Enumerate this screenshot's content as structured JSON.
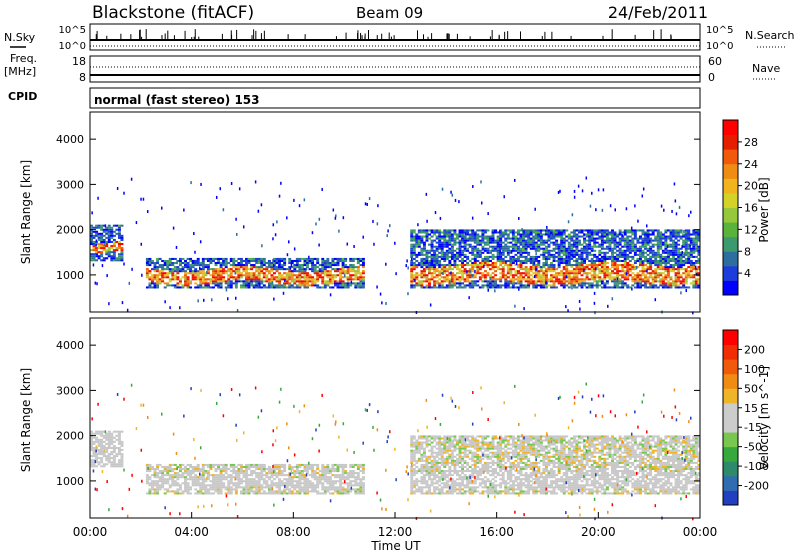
{
  "header": {
    "station": "Blackstone (fitACF)",
    "beam": "Beam 09",
    "date": "24/Feb/2011"
  },
  "top_panels": {
    "nsky_label": "N.Sky",
    "nsky_ticks": [
      "10^5",
      "10^0"
    ],
    "nsky_right_ticks": [
      "10^5",
      "10^0"
    ],
    "nsearch_label": "N.Search",
    "freq_label": "Freq.",
    "freq_unit": "[MHz]",
    "freq_ticks": [
      "18",
      "8"
    ],
    "nave_label": "Nave",
    "nave_ticks": [
      "60",
      "0"
    ],
    "cpid_label": "CPID",
    "cpid_text": "normal (fast stereo) 153"
  },
  "chart_data": [
    {
      "type": "heatmap",
      "panel": "power",
      "ylabel": "Slant Range [km]",
      "ylim": [
        180,
        4600
      ],
      "yticks": [
        1000,
        2000,
        3000,
        4000
      ],
      "xlim": [
        0,
        24
      ],
      "colorbar": {
        "label": "Power [dB]",
        "ticks": [
          "28",
          "24",
          "20",
          "16",
          "12",
          "8",
          "4"
        ],
        "colors": [
          "#0000ff",
          "#1c3cdc",
          "#2e6e9e",
          "#3c9a6e",
          "#5ab43c",
          "#96c83c",
          "#d2d228",
          "#f0b41e",
          "#f08c14",
          "#f05a0a",
          "#e61e00",
          "#ff0000"
        ]
      },
      "echo_bands": [
        {
          "t0": 0.0,
          "t1": 1.3,
          "r_low": 1300,
          "r_high": 2100,
          "core_low": 1450,
          "core_high": 1650
        },
        {
          "t0": 2.2,
          "t1": 10.8,
          "r_low": 700,
          "r_high": 1350,
          "core_low": 800,
          "core_high": 1100
        },
        {
          "t0": 12.6,
          "t1": 24.0,
          "r_low": 700,
          "r_high": 2000,
          "core_low": 800,
          "core_high": 1200
        }
      ]
    },
    {
      "type": "heatmap",
      "panel": "velocity",
      "ylabel": "Slant Range [km]",
      "xlabel": "Time UT",
      "ylim": [
        180,
        4600
      ],
      "yticks": [
        1000,
        2000,
        3000,
        4000
      ],
      "xlim": [
        0,
        24
      ],
      "xticks": [
        "00:00",
        "04:00",
        "08:00",
        "12:00",
        "16:00",
        "20:00",
        "00:00"
      ],
      "colorbar": {
        "label": "Velocity [m s^-1]",
        "ticks": [
          "200",
          "100",
          "50",
          "15",
          "-15",
          "-50",
          "-100",
          "-200"
        ],
        "colors": [
          "#2040c0",
          "#2f6cb0",
          "#2e8a6a",
          "#36a83c",
          "#78c850",
          "#cccccc",
          "#cccccc",
          "#f0b428",
          "#f08c14",
          "#f05a0a",
          "#f02d05",
          "#ff0000"
        ]
      },
      "ground_scatter_color": "#c8c8c8"
    }
  ]
}
